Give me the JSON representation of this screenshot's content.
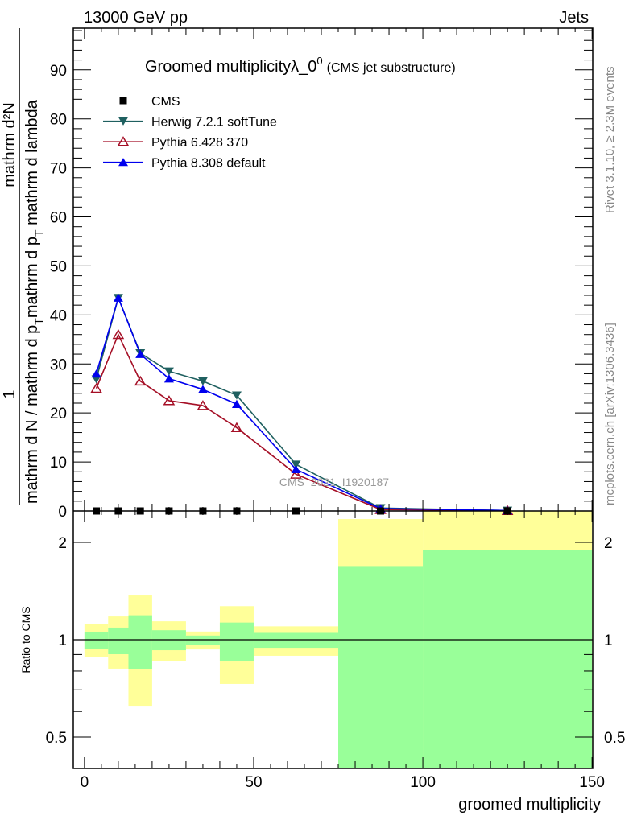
{
  "header": {
    "left": "13000 GeV pp",
    "right": "Jets"
  },
  "side_texts": {
    "rivet": "Rivet 3.1.10, ≥ 2.3M events",
    "mcplots": "mcplots.cern.ch [arXiv:1306.3436]"
  },
  "watermark": "CMS_2021_I1920187",
  "chart_data": [
    {
      "type": "line",
      "title": "Groomed multiplicityλ_0",
      "title_sup": "0",
      "subtitle": "(CMS jet substructure)",
      "ylabel_num_1": "1",
      "ylabel_num_2": "mathrm d²N",
      "ylabel_den": "mathrm d N / mathrm d p",
      "ylabel_den_sub1": "T",
      "ylabel_den_2": "mathrm d p",
      "ylabel_den_sub2": "T",
      "ylabel_den_3": " mathrm d lambda",
      "xlim": [
        -3.3,
        150.2
      ],
      "ylim": [
        0,
        98.5
      ],
      "yticks": [
        0,
        10,
        20,
        30,
        40,
        50,
        60,
        70,
        80,
        90
      ],
      "legend_position": "top-left",
      "x": [
        3.5,
        10,
        16.5,
        25,
        35,
        45,
        62.5,
        87.5,
        125
      ],
      "series": [
        {
          "name": "CMS",
          "color": "#000000",
          "marker": "square",
          "values": [
            0,
            0,
            0,
            0,
            0,
            0,
            0,
            0,
            0
          ]
        },
        {
          "name": "Herwig 7.2.1 softTune",
          "color": "#1f6060",
          "marker": "triangle-down",
          "values": [
            26.9,
            43.5,
            32.2,
            28.5,
            26.5,
            23.6,
            9.5,
            0.6,
            0.1
          ]
        },
        {
          "name": "Pythia 6.428 370",
          "color": "#a50f26",
          "marker": "triangle-up-open",
          "values": [
            25.0,
            36.0,
            26.5,
            22.5,
            21.5,
            17.0,
            7.5,
            0.3,
            0.1
          ]
        },
        {
          "name": "Pythia 8.308 default",
          "color": "#0000ee",
          "marker": "triangle-up",
          "values": [
            28.0,
            43.5,
            32.0,
            27.0,
            24.8,
            21.8,
            8.5,
            0.5,
            0.1
          ]
        }
      ]
    },
    {
      "type": "area",
      "ylabel": "Ratio to CMS",
      "xlabel": "groomed multiplicity",
      "yscale": "log",
      "ylim": [
        0.4,
        2.5
      ],
      "yticks": [
        0.5,
        1,
        2
      ],
      "ytick_labels": [
        "0.5",
        "1",
        "2"
      ],
      "xticks": [
        0,
        50,
        100,
        150
      ],
      "xtick_labels": [
        "0",
        "50",
        "100",
        "150"
      ],
      "bin_edges": [
        0,
        7,
        13,
        20,
        30,
        40,
        50,
        75,
        100,
        150
      ],
      "yellow_band": {
        "color": "#ffff99",
        "lo": [
          0.882,
          0.814,
          0.625,
          0.857,
          0.933,
          0.73,
          0.892,
          0.3,
          0.3
        ],
        "hi": [
          1.115,
          1.18,
          1.37,
          1.14,
          1.06,
          1.27,
          1.1,
          2.36,
          3.0
        ]
      },
      "green_band": {
        "color": "#99ff99",
        "lo": [
          0.939,
          0.902,
          0.81,
          0.928,
          0.966,
          0.86,
          0.944,
          0.3,
          0.3
        ],
        "hi": [
          1.059,
          1.09,
          1.19,
          1.07,
          1.03,
          1.13,
          1.05,
          1.68,
          1.89
        ]
      }
    }
  ]
}
